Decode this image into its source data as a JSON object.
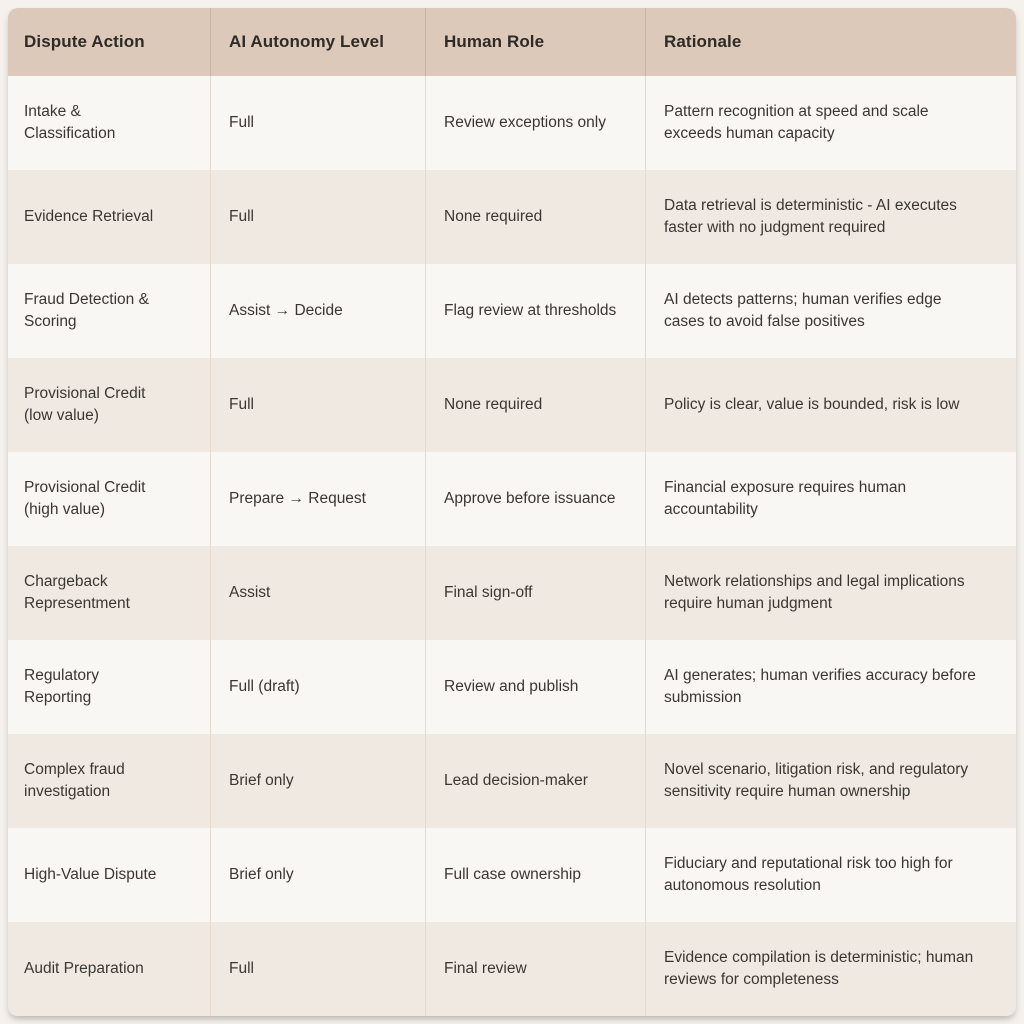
{
  "colors": {
    "page_bg": "#f5f2ee",
    "header_bg": "#ddc9ba",
    "row_stripe_dark": "#efe9e2",
    "row_stripe_light": "#f9f7f4",
    "header_divider": "#c7b2a3",
    "body_divider": "#e5d9cc",
    "header_text": "#2e2a26",
    "body_text": "#3a3631"
  },
  "table": {
    "columns": [
      "Dispute Action",
      "AI Autonomy Level",
      "Human Role",
      "Rationale"
    ],
    "rows": [
      {
        "action": "Intake &\nClassification",
        "autonomy": "Full",
        "human_role": "Review exceptions only",
        "rationale": "Pattern recognition at speed and scale\nexceeds human capacity"
      },
      {
        "action": "Evidence Retrieval",
        "autonomy": "Full",
        "human_role": "None required",
        "rationale": "Data retrieval is deterministic - AI executes\nfaster with no judgment required"
      },
      {
        "action": "Fraud Detection &\nScoring",
        "autonomy": "Assist → Decide",
        "human_role": "Flag review at thresholds",
        "rationale": "AI detects patterns; human verifies edge\ncases to avoid false positives"
      },
      {
        "action": "Provisional Credit\n(low value)",
        "autonomy": "Full",
        "human_role": "None required",
        "rationale": "Policy is clear, value is bounded, risk is low"
      },
      {
        "action": "Provisional Credit\n(high value)",
        "autonomy": "Prepare → Request",
        "human_role": "Approve before issuance",
        "rationale": "Financial exposure requires human\naccountability"
      },
      {
        "action": "Chargeback\nRepresentment",
        "autonomy": "Assist",
        "human_role": "Final sign-off",
        "rationale": "Network relationships and legal implications\nrequire human judgment"
      },
      {
        "action": "Regulatory\nReporting",
        "autonomy": "Full (draft)",
        "human_role": "Review and publish",
        "rationale": "AI generates; human verifies accuracy before\nsubmission"
      },
      {
        "action": "Complex fraud\ninvestigation",
        "autonomy": "Brief only",
        "human_role": "Lead decision-maker",
        "rationale": "Novel scenario, litigation risk, and regulatory\nsensitivity require human ownership"
      },
      {
        "action": "High-Value Dispute",
        "autonomy": "Brief only",
        "human_role": "Full case ownership",
        "rationale": "Fiduciary and reputational risk too high for\nautonomous resolution"
      },
      {
        "action": "Audit Preparation",
        "autonomy": "Full",
        "human_role": "Final review",
        "rationale": "Evidence compilation is deterministic; human\nreviews for completeness"
      }
    ]
  }
}
